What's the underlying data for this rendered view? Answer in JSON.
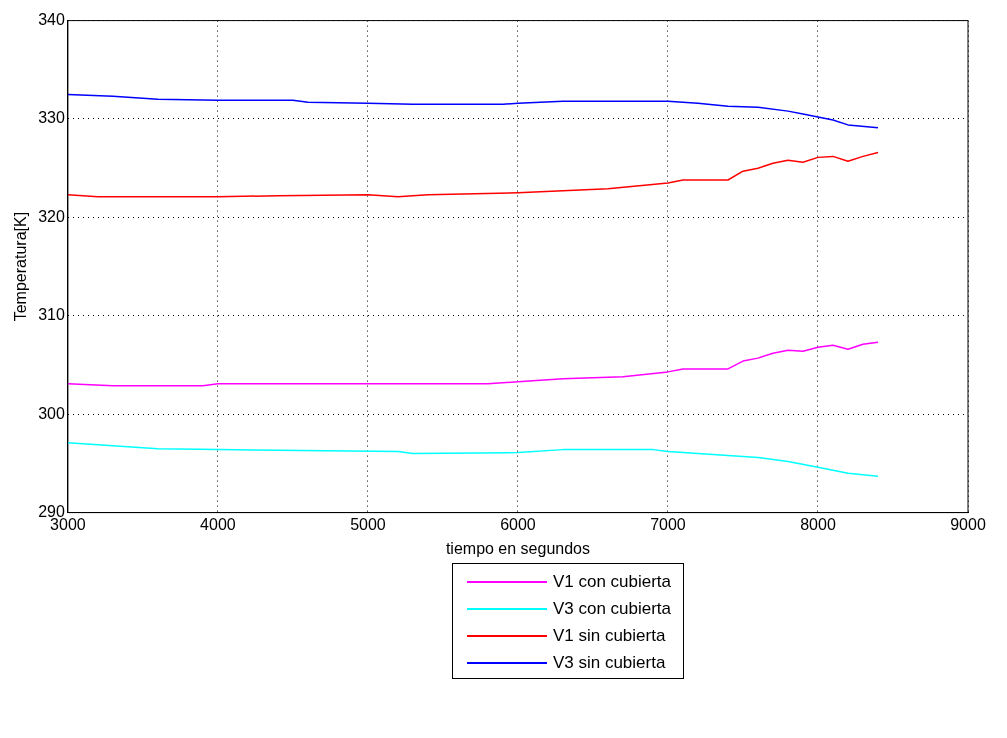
{
  "chart_data": {
    "type": "line",
    "xlabel": "tiempo en segundos",
    "ylabel": "Temperatura[K]",
    "xlim": [
      3000,
      9000
    ],
    "xticks": [
      3000,
      4000,
      5000,
      6000,
      7000,
      8000,
      9000
    ],
    "ylim": [
      290,
      340
    ],
    "yticks": [
      290,
      300,
      310,
      320,
      330,
      340
    ],
    "grid": true,
    "legend": "bottom",
    "line_style": "solid",
    "marker": "none",
    "series": [
      {
        "name": "V1 con cubierta",
        "color": "#ff00ff",
        "x": [
          3000,
          3300,
          3900,
          4000,
          5800,
          6000,
          6300,
          6700,
          7000,
          7100,
          7400,
          7500,
          7600,
          7700,
          7800,
          7900,
          8000,
          8100,
          8200,
          8300,
          8400
        ],
        "values": [
          303.1,
          302.9,
          302.9,
          303.1,
          303.1,
          303.3,
          303.6,
          303.8,
          304.3,
          304.6,
          304.6,
          305.4,
          305.7,
          306.2,
          306.5,
          306.4,
          306.8,
          307.0,
          306.6,
          307.1,
          307.3
        ]
      },
      {
        "name": "V3 con cubierta",
        "color": "#00ffff",
        "x": [
          3000,
          3300,
          3600,
          4000,
          5200,
          5300,
          6000,
          6300,
          6900,
          7000,
          7400,
          7600,
          7800,
          8000,
          8200,
          8400
        ],
        "values": [
          297.1,
          296.8,
          296.5,
          296.4,
          296.2,
          296.0,
          296.1,
          296.4,
          296.4,
          296.2,
          295.8,
          295.6,
          295.2,
          294.6,
          294.0,
          293.7
        ]
      },
      {
        "name": "V1 sin cubierta",
        "color": "#ff0000",
        "x": [
          3000,
          3200,
          4000,
          4400,
          5000,
          5200,
          5400,
          6000,
          6300,
          6600,
          7000,
          7100,
          7400,
          7500,
          7600,
          7700,
          7800,
          7900,
          8000,
          8100,
          8200,
          8300,
          8400
        ],
        "values": [
          322.3,
          322.1,
          322.1,
          322.2,
          322.3,
          322.1,
          322.3,
          322.5,
          322.7,
          322.9,
          323.5,
          323.8,
          323.8,
          324.7,
          325.0,
          325.5,
          325.8,
          325.6,
          326.1,
          326.2,
          325.7,
          326.2,
          326.6
        ]
      },
      {
        "name": "V3 sin cubierta",
        "color": "#0000ff",
        "x": [
          3000,
          3300,
          3600,
          4000,
          4500,
          4600,
          5000,
          5300,
          5900,
          6000,
          6300,
          7000,
          7200,
          7400,
          7600,
          7800,
          7900,
          8000,
          8100,
          8200,
          8400
        ],
        "values": [
          332.5,
          332.3,
          332.0,
          331.9,
          331.9,
          331.7,
          331.6,
          331.5,
          331.5,
          331.6,
          331.8,
          331.8,
          331.6,
          331.3,
          331.2,
          330.8,
          330.5,
          330.2,
          329.9,
          329.4,
          329.1
        ]
      }
    ]
  }
}
